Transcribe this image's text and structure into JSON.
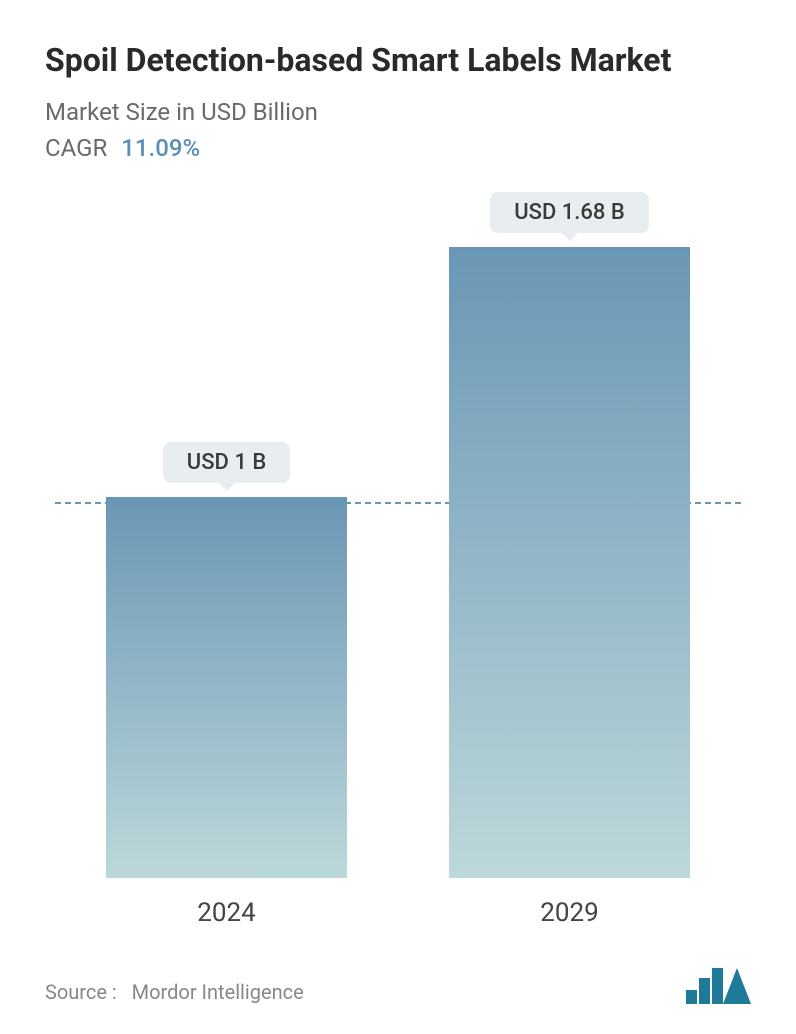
{
  "header": {
    "title": "Spoil Detection-based Smart Labels Market",
    "subtitle": "Market Size in USD Billion",
    "cagr_label": "CAGR",
    "cagr_value": "11.09%"
  },
  "chart": {
    "type": "bar",
    "background_color": "#ffffff",
    "bar_gradient_top": "#6a96b5",
    "bar_gradient_bottom": "#bcd8da",
    "value_label_bg": "#e8eef0",
    "value_label_text": "#3a3a3a",
    "dashed_line_color": "#6a96b5",
    "dashed_line_at_value": 1.0,
    "y_max": 1.8,
    "bars": [
      {
        "category": "2024",
        "value": 1.0,
        "label": "USD 1 B"
      },
      {
        "category": "2029",
        "value": 1.68,
        "label": "USD 1.68 B"
      }
    ],
    "x_label_fontsize": 26,
    "value_label_fontsize": 22
  },
  "footer": {
    "source_label": "Source :",
    "source_name": "Mordor Intelligence",
    "logo_color": "#1f7a99"
  }
}
